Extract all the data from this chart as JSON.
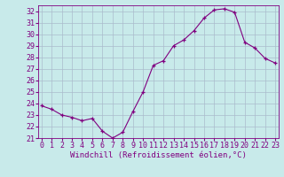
{
  "x": [
    0,
    1,
    2,
    3,
    4,
    5,
    6,
    7,
    8,
    9,
    10,
    11,
    12,
    13,
    14,
    15,
    16,
    17,
    18,
    19,
    20,
    21,
    22,
    23
  ],
  "y": [
    23.8,
    23.5,
    23.0,
    22.8,
    22.5,
    22.7,
    21.6,
    21.0,
    21.5,
    23.3,
    25.0,
    27.3,
    27.7,
    29.0,
    29.5,
    30.3,
    31.4,
    32.1,
    32.2,
    31.9,
    29.3,
    28.8,
    27.9,
    27.5
  ],
  "line_color": "#800080",
  "marker": "+",
  "xlabel": "Windchill (Refroidissement éolien,°C)",
  "ylabel": "",
  "ylim": [
    21,
    32.5
  ],
  "xlim": [
    -0.3,
    23.3
  ],
  "yticks": [
    21,
    22,
    23,
    24,
    25,
    26,
    27,
    28,
    29,
    30,
    31,
    32
  ],
  "xticks": [
    0,
    1,
    2,
    3,
    4,
    5,
    6,
    7,
    8,
    9,
    10,
    11,
    12,
    13,
    14,
    15,
    16,
    17,
    18,
    19,
    20,
    21,
    22,
    23
  ],
  "bg_color": "#c8eaea",
  "grid_color": "#aabbcc",
  "label_color": "#800080",
  "font_family": "monospace",
  "tick_fontsize": 6.0,
  "xlabel_fontsize": 6.5
}
